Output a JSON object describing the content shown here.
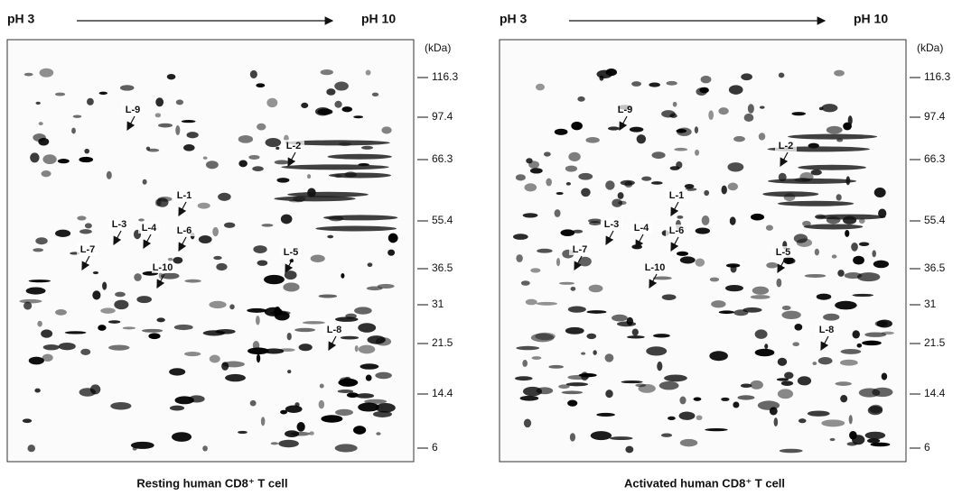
{
  "panels": [
    {
      "ph_start": "pH 3",
      "ph_end": "pH 10",
      "unit": "(kDa)",
      "markers": [
        "116.3",
        "97.4",
        "66.3",
        "55.4",
        "36.5",
        "31",
        "21.5",
        "14.4",
        "6"
      ],
      "labels": [
        "L-9",
        "L-2",
        "L-1",
        "L-3",
        "L-4",
        "L-6",
        "L-7",
        "L-10",
        "L-5",
        "L-8"
      ],
      "caption": "Resting human CD8⁺ T cell"
    },
    {
      "ph_start": "pH 3",
      "ph_end": "pH 10",
      "unit": "(kDa)",
      "markers": [
        "116.3",
        "97.4",
        "66.3",
        "55.4",
        "36.5",
        "31",
        "21.5",
        "14.4",
        "6"
      ],
      "labels": [
        "L-9",
        "L-2",
        "L-1",
        "L-3",
        "L-4",
        "L-6",
        "L-7",
        "L-10",
        "L-5",
        "L-8"
      ],
      "caption": "Activated human CD8⁺ T cell"
    }
  ]
}
